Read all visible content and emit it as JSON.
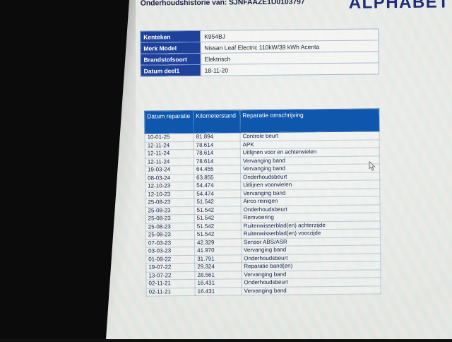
{
  "title": "Onderhoudshistorie van: SJNFAAZE1U0103797",
  "logo": "ALPHABET",
  "vehicle_info": {
    "rows": [
      {
        "label": "Kenteken",
        "value": "K954BJ"
      },
      {
        "label": "Merk Model",
        "value": "Nissan Leaf Electric 110kW/39 kWh Acenta"
      },
      {
        "label": "Brandstofsoort",
        "value": "Elektrisch"
      },
      {
        "label": "Datum deel1",
        "value": "18-11-20"
      }
    ]
  },
  "maintenance_table": {
    "headers": [
      "Datum reparatie",
      "Kilometerstand",
      "Reparatie omschrijving"
    ],
    "rows": [
      {
        "date": "10-01-25",
        "km": "81.894",
        "description": "Controle beurt"
      },
      {
        "date": "12-11-24",
        "km": "78.614",
        "description": "APK"
      },
      {
        "date": "12-11-24",
        "km": "78.614",
        "description": "Uitlijnen voor en achterwielen"
      },
      {
        "date": "12-11-24",
        "km": "78.614",
        "description": "Vervanging band"
      },
      {
        "date": "19-03-24",
        "km": "64.455",
        "description": "Vervanging band"
      },
      {
        "date": "08-03-24",
        "km": "63.855",
        "description": "Onderhoudsbeurt"
      },
      {
        "date": "12-10-23",
        "km": "54.474",
        "description": "Uitlijnen voorwielen"
      },
      {
        "date": "12-10-23",
        "km": "54.474",
        "description": "Vervanging band"
      },
      {
        "date": "25-08-23",
        "km": "51.542",
        "description": "Airco reinigen"
      },
      {
        "date": "25-08-23",
        "km": "51.542",
        "description": "Onderhoudsbeurt"
      },
      {
        "date": "25-08-23",
        "km": "51.542",
        "description": "Remvoering"
      },
      {
        "date": "25-08-23",
        "km": "51.542",
        "description": "Ruitenwisserblad(en) achterzijde"
      },
      {
        "date": "25-08-23",
        "km": "51.542",
        "description": "Ruitenwisserblad(en) voorzijde"
      },
      {
        "date": "07-03-23",
        "km": "42.329",
        "description": "Sensor ABS/ASR"
      },
      {
        "date": "03-03-23",
        "km": "41.970",
        "description": "Vervanging band"
      },
      {
        "date": "01-09-22",
        "km": "31.791",
        "description": "Onderhoudsbeurt"
      },
      {
        "date": "19-07-22",
        "km": "29.324",
        "description": "Reparatie band(en)"
      },
      {
        "date": "13-07-22",
        "km": "28.561",
        "description": "Vervanging band"
      },
      {
        "date": "02-11-21",
        "km": "16.431",
        "description": "Onderhoudsbeurt"
      },
      {
        "date": "02-11-21",
        "km": "16.431",
        "description": "Vervanging band"
      }
    ]
  },
  "icons": {
    "cursor": "mouse-pointer-icon"
  },
  "colors": {
    "info_label_bg": "#1e429c",
    "table_header_bg": "#0e57ad",
    "logo_color": "#1d2c7d",
    "title_color": "#1b2140",
    "screen_bg": "#e8e9e5",
    "bezel": "#0b0b0b"
  }
}
